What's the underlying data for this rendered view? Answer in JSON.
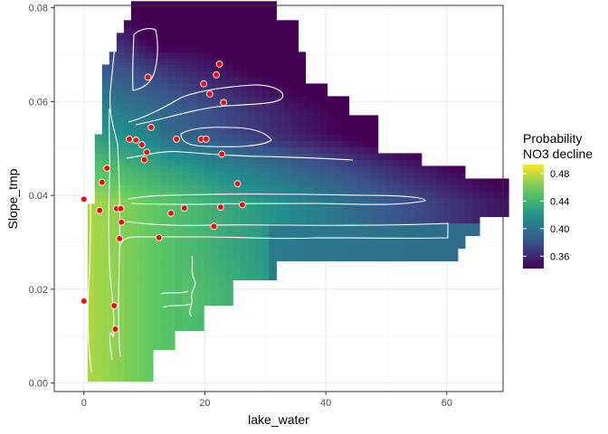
{
  "chart_data": {
    "type": "heatmap",
    "xlabel": "lake_water",
    "ylabel": "Slope_tmp",
    "xlim": [
      -4.9,
      69.3
    ],
    "ylim": [
      -0.0018,
      0.0805
    ],
    "x_ticks": [
      0,
      20,
      40,
      60
    ],
    "y_ticks": [
      0.0,
      0.02,
      0.04,
      0.06,
      0.08
    ],
    "x_tick_labels": [
      "0",
      "20",
      "40",
      "60"
    ],
    "y_tick_labels": [
      "0.00",
      "0.02",
      "0.04",
      "0.06",
      "0.08"
    ],
    "grid": true,
    "legend": {
      "title_lines": [
        "Probability",
        "NO3 decline"
      ],
      "ticks": [
        0.36,
        0.4,
        0.44,
        0.48
      ],
      "tick_labels": [
        "0.36",
        "0.40",
        "0.44",
        "0.48"
      ],
      "range": [
        0.342,
        0.493
      ],
      "position": "right",
      "colors": [
        "#440154",
        "#3b528b",
        "#21908c",
        "#5dc863",
        "#fde725"
      ]
    },
    "heatmap": {
      "x_step": 1.2,
      "y_step": 0.00135,
      "x_start": 0.6,
      "y_start": 0.0004,
      "row_extent": [
        [
          0.0,
          0.0,
          11
        ],
        [
          0.0059,
          0.0,
          14
        ],
        [
          0.0111,
          0.0,
          19
        ],
        [
          0.0163,
          0.0,
          24
        ],
        [
          0.0215,
          0.0,
          31
        ],
        [
          0.0248,
          0.0,
          61
        ],
        [
          0.0281,
          0.0,
          62
        ],
        [
          0.0314,
          0.0,
          65
        ],
        [
          0.0347,
          0.0,
          69.4
        ],
        [
          0.0381,
          1.3,
          69.4
        ],
        [
          0.0424,
          1.3,
          63
        ],
        [
          0.0458,
          1.3,
          55
        ],
        [
          0.0487,
          1.3,
          48
        ],
        [
          0.0526,
          2.5,
          48
        ],
        [
          0.0566,
          2.5,
          43
        ],
        [
          0.0602,
          2.5,
          39
        ],
        [
          0.0631,
          3.0,
          36
        ],
        [
          0.0666,
          3.8,
          36
        ],
        [
          0.0705,
          5.0,
          35
        ],
        [
          0.0744,
          6.2,
          35
        ],
        [
          0.0772,
          7.5,
          31
        ],
        [
          0.0801,
          9.9,
          31
        ]
      ]
    },
    "points_color": "#ff0000",
    "points": [
      {
        "x": 0.0,
        "y": 0.0392
      },
      {
        "x": 0.0,
        "y": 0.0175
      },
      {
        "x": 2.6,
        "y": 0.0368
      },
      {
        "x": 3.0,
        "y": 0.0428
      },
      {
        "x": 3.8,
        "y": 0.0458
      },
      {
        "x": 5.0,
        "y": 0.0165
      },
      {
        "x": 5.2,
        "y": 0.0115
      },
      {
        "x": 5.4,
        "y": 0.0372
      },
      {
        "x": 5.9,
        "y": 0.0308
      },
      {
        "x": 6.1,
        "y": 0.0372
      },
      {
        "x": 6.2,
        "y": 0.0343
      },
      {
        "x": 7.5,
        "y": 0.052
      },
      {
        "x": 8.6,
        "y": 0.0518
      },
      {
        "x": 9.6,
        "y": 0.0508
      },
      {
        "x": 10.0,
        "y": 0.0476
      },
      {
        "x": 10.4,
        "y": 0.0492
      },
      {
        "x": 10.6,
        "y": 0.0652
      },
      {
        "x": 11.1,
        "y": 0.0545
      },
      {
        "x": 12.4,
        "y": 0.031
      },
      {
        "x": 14.4,
        "y": 0.0362
      },
      {
        "x": 15.3,
        "y": 0.052
      },
      {
        "x": 16.6,
        "y": 0.0373
      },
      {
        "x": 19.4,
        "y": 0.052
      },
      {
        "x": 19.8,
        "y": 0.0638
      },
      {
        "x": 20.2,
        "y": 0.052
      },
      {
        "x": 20.8,
        "y": 0.0616
      },
      {
        "x": 21.5,
        "y": 0.0334
      },
      {
        "x": 21.9,
        "y": 0.0657
      },
      {
        "x": 22.4,
        "y": 0.068
      },
      {
        "x": 22.6,
        "y": 0.0375
      },
      {
        "x": 22.8,
        "y": 0.0488
      },
      {
        "x": 23.1,
        "y": 0.0598
      },
      {
        "x": 25.4,
        "y": 0.0425
      },
      {
        "x": 26.2,
        "y": 0.038
      }
    ]
  }
}
